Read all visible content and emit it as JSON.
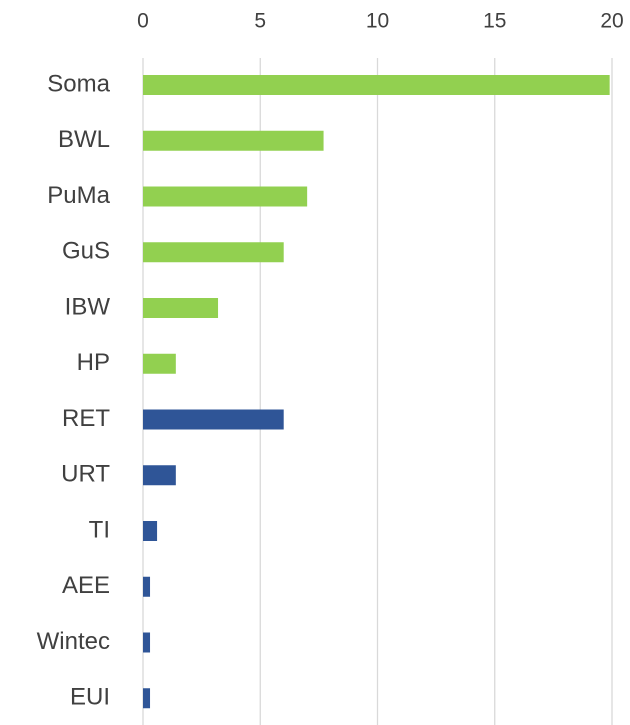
{
  "chart_data": {
    "type": "bar",
    "orientation": "horizontal",
    "x_axis_position": "top",
    "categories": [
      "Soma",
      "BWL",
      "PuMa",
      "GuS",
      "IBW",
      "HP",
      "RET",
      "URT",
      "TI",
      "AEE",
      "Wintec",
      "EUI"
    ],
    "values": [
      19.9,
      7.7,
      7.0,
      6.0,
      3.2,
      1.4,
      6.0,
      1.4,
      0.6,
      0.3,
      0.3,
      0.3
    ],
    "colors": [
      "#92d050",
      "#92d050",
      "#92d050",
      "#92d050",
      "#92d050",
      "#92d050",
      "#2f5597",
      "#2f5597",
      "#2f5597",
      "#2f5597",
      "#2f5597",
      "#2f5597"
    ],
    "xlim": [
      0,
      20
    ],
    "xticks": [
      0,
      5,
      10,
      15,
      20
    ],
    "grid": true
  }
}
